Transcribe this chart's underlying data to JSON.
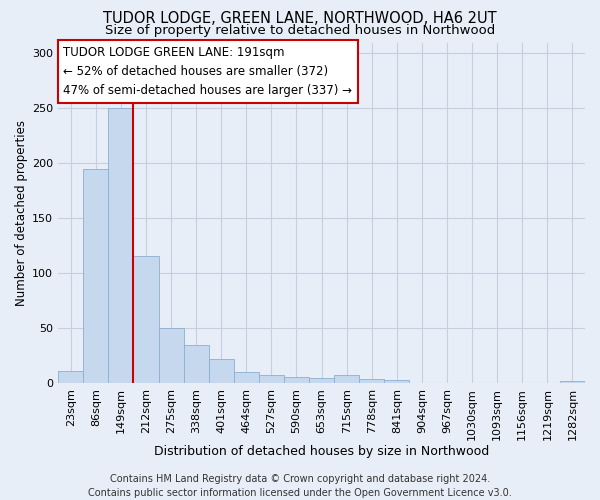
{
  "title": "TUDOR LODGE, GREEN LANE, NORTHWOOD, HA6 2UT",
  "subtitle": "Size of property relative to detached houses in Northwood",
  "xlabel": "Distribution of detached houses by size in Northwood",
  "ylabel": "Number of detached properties",
  "categories": [
    "23sqm",
    "86sqm",
    "149sqm",
    "212sqm",
    "275sqm",
    "338sqm",
    "401sqm",
    "464sqm",
    "527sqm",
    "590sqm",
    "653sqm",
    "715sqm",
    "778sqm",
    "841sqm",
    "904sqm",
    "967sqm",
    "1030sqm",
    "1093sqm",
    "1156sqm",
    "1219sqm",
    "1282sqm"
  ],
  "values": [
    11,
    195,
    250,
    116,
    50,
    35,
    22,
    10,
    8,
    6,
    5,
    8,
    4,
    3,
    0,
    0,
    0,
    0,
    0,
    0,
    2
  ],
  "bar_color": "#c5d8ee",
  "bar_edgecolor": "#8ab0d0",
  "vline_x_index": 3,
  "vline_color": "#cc0000",
  "annotation_text": "TUDOR LODGE GREEN LANE: 191sqm\n← 52% of detached houses are smaller (372)\n47% of semi-detached houses are larger (337) →",
  "annotation_box_edgecolor": "#cc0000",
  "ylim": [
    0,
    310
  ],
  "yticks": [
    0,
    50,
    100,
    150,
    200,
    250,
    300
  ],
  "footer": "Contains HM Land Registry data © Crown copyright and database right 2024.\nContains public sector information licensed under the Open Government Licence v3.0.",
  "bg_color": "#e8eef7",
  "plot_bg_color": "#e8eef7",
  "grid_color": "#c5cfdf",
  "title_fontsize": 10.5,
  "subtitle_fontsize": 9.5,
  "xlabel_fontsize": 9,
  "ylabel_fontsize": 8.5,
  "tick_fontsize": 8,
  "annotation_fontsize": 8.5,
  "footer_fontsize": 7
}
